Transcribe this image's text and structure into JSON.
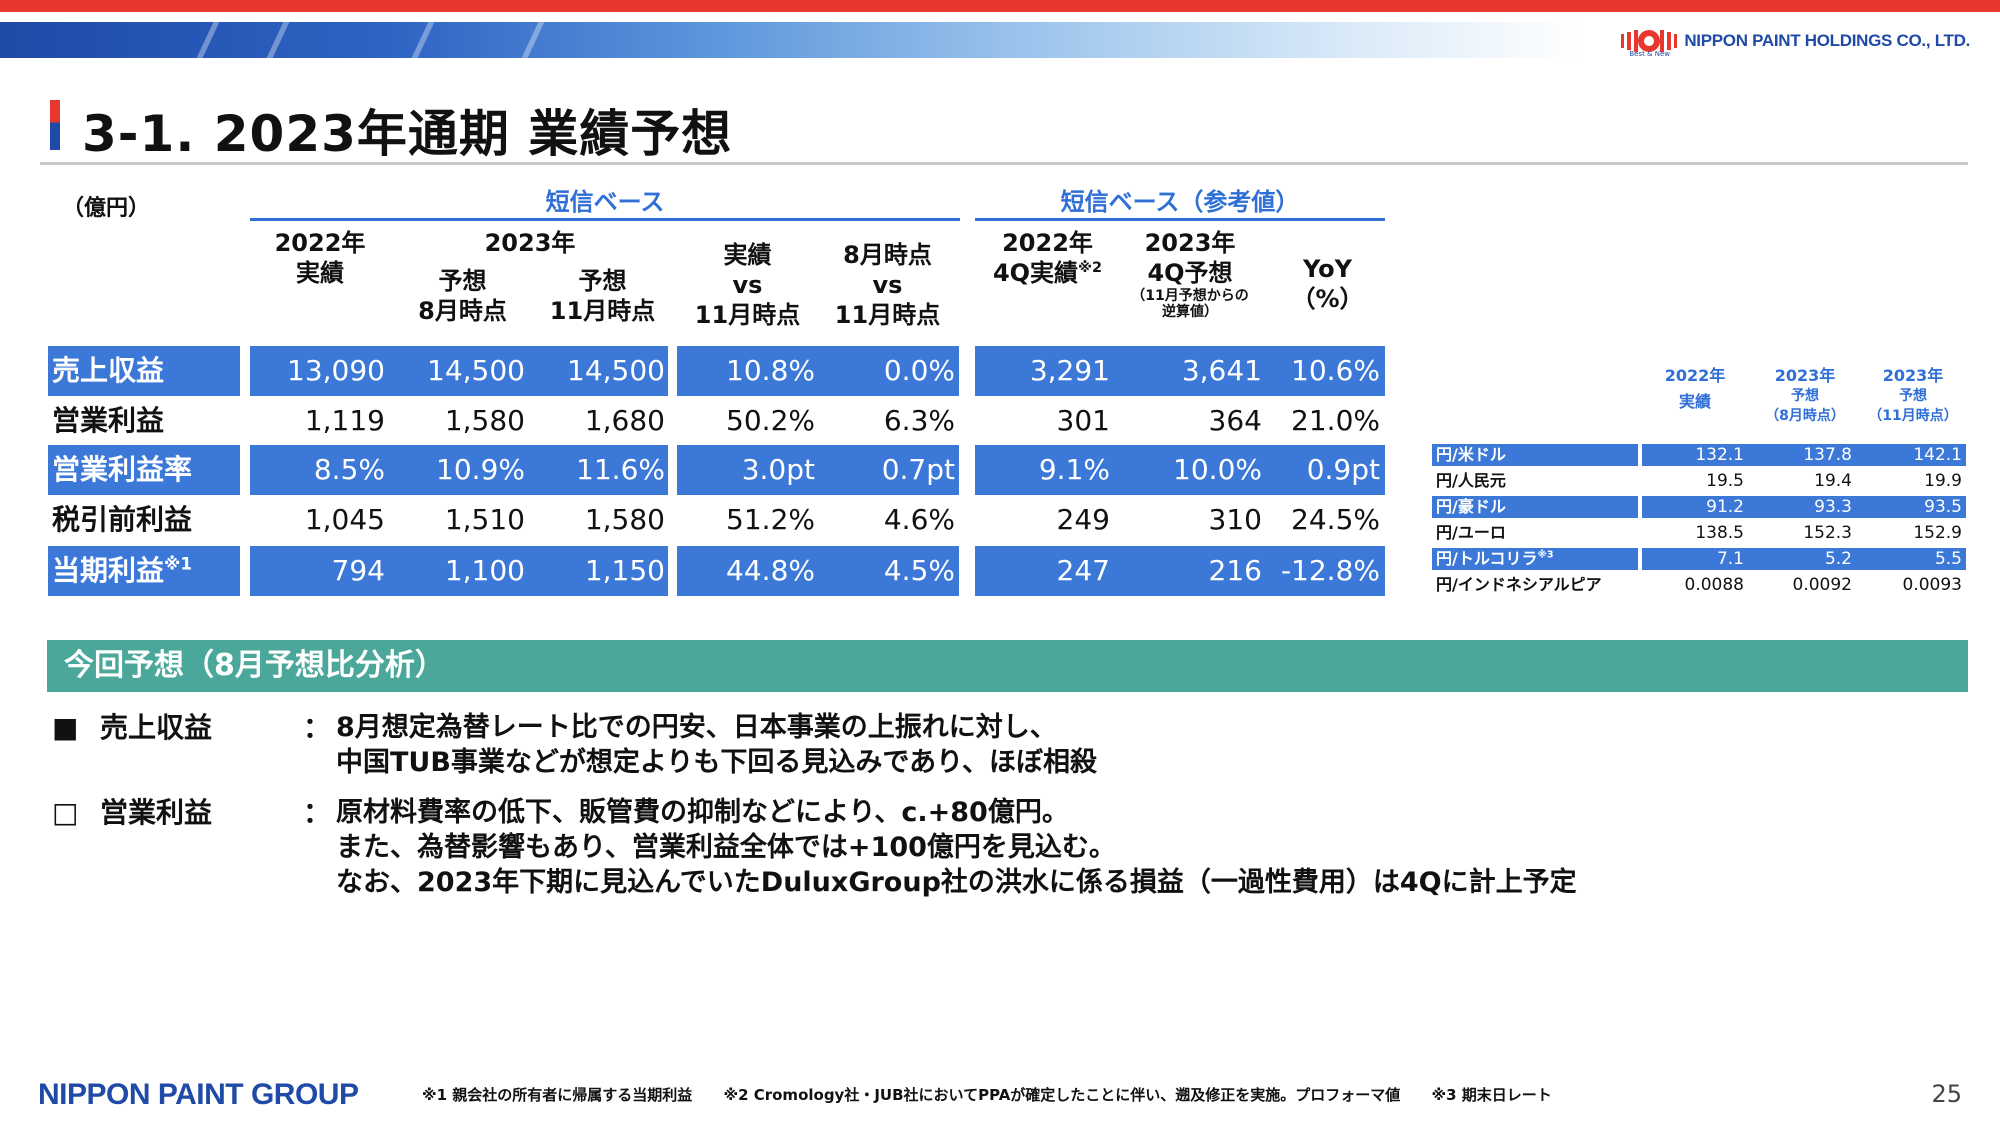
{
  "header": {
    "company": "NIPPON PAINT HOLDINGS CO., LTD.",
    "tagline": "Best & New",
    "title": "3-1. 2023年通期 業績予想"
  },
  "table": {
    "unit": "（億円）",
    "group1": "短信ベース",
    "group2": "短信ベース（参考値）",
    "col_headers": [
      {
        "l1": "2022年",
        "l2": "実績",
        "l3": ""
      },
      {
        "l1": "予想",
        "l2": "8月時点"
      },
      {
        "l1": "予想",
        "l2": "11月時点"
      },
      {
        "l1": "実績",
        "l2": "vs",
        "l3": "11月時点"
      },
      {
        "l1": "8月時点",
        "l2": "vs",
        "l3": "11月時点"
      },
      {
        "l1": "2022年",
        "l2": "4Q実績",
        "sup": "※2"
      },
      {
        "l1": "2023年",
        "l2": "4Q予想",
        "note1": "（11月予想からの",
        "note2": "逆算値）"
      },
      {
        "l1": "YoY",
        "l2": "（%）"
      }
    ],
    "year2023": "2023年",
    "rows": [
      {
        "label": "売上収益",
        "sup": "",
        "values": [
          "13,090",
          "14,500",
          "14,500",
          "10.8%",
          "0.0%",
          "3,291",
          "3,641",
          "10.6%"
        ]
      },
      {
        "label": "営業利益",
        "sup": "",
        "values": [
          "1,119",
          "1,580",
          "1,680",
          "50.2%",
          "6.3%",
          "301",
          "364",
          "21.0%"
        ]
      },
      {
        "label": "営業利益率",
        "sup": "",
        "values": [
          "8.5%",
          "10.9%",
          "11.6%",
          "3.0pt",
          "0.7pt",
          "9.1%",
          "10.0%",
          "0.9pt"
        ]
      },
      {
        "label": "税引前利益",
        "sup": "",
        "values": [
          "1,045",
          "1,510",
          "1,580",
          "51.2%",
          "4.6%",
          "249",
          "310",
          "24.5%"
        ]
      },
      {
        "label": "当期利益",
        "sup": "※1",
        "values": [
          "794",
          "1,100",
          "1,150",
          "44.8%",
          "4.5%",
          "247",
          "216",
          "-12.8%"
        ]
      }
    ]
  },
  "fx": {
    "headers": [
      {
        "l1": "2022年",
        "l2": "実績",
        "l3": ""
      },
      {
        "l1": "2023年",
        "l2": "予想",
        "l3": "（8月時点）"
      },
      {
        "l1": "2023年",
        "l2": "予想",
        "l3": "（11月時点）"
      }
    ],
    "rows": [
      {
        "label": "円/米ドル",
        "sup": "",
        "values": [
          "132.1",
          "137.8",
          "142.1"
        ]
      },
      {
        "label": "円/人民元",
        "sup": "",
        "values": [
          "19.5",
          "19.4",
          "19.9"
        ]
      },
      {
        "label": "円/豪ドル",
        "sup": "",
        "values": [
          "91.2",
          "93.3",
          "93.5"
        ]
      },
      {
        "label": "円/ユーロ",
        "sup": "",
        "values": [
          "138.5",
          "152.3",
          "152.9"
        ]
      },
      {
        "label": "円/トルコリラ",
        "sup": "※3",
        "values": [
          "7.1",
          "5.2",
          "5.5"
        ]
      },
      {
        "label": "円/インドネシアルピア",
        "sup": "",
        "values": [
          "0.0088",
          "0.0092",
          "0.0093"
        ]
      }
    ]
  },
  "analysis": {
    "title": "今回予想（8月予想比分析）",
    "items": [
      {
        "marker": "■",
        "head": "売上収益",
        "colon": "：",
        "lines": [
          "8月想定為替レート比での円安、日本事業の上振れに対し、",
          "中国TUB事業などが想定よりも下回る見込みであり、ほぼ相殺"
        ]
      },
      {
        "marker": "□",
        "head": "営業利益",
        "colon": "：",
        "lines": [
          "原材料費率の低下、販管費の抑制などにより、c.+80億円。",
          "また、為替影響もあり、営業利益全体では+100億円を見込む。",
          "なお、2023年下期に見込んでいたDuluxGroup社の洪水に係る損益（一過性費用）は4Qに計上予定"
        ]
      }
    ]
  },
  "footer": {
    "group_logo": "NIPPON PAINT GROUP",
    "note1": "※1 親会社の所有者に帰属する当期利益",
    "note2": "※2 Cromology社・JUB社においてPPAが確定したことに伴い、遡及修正を実施。プロフォーマ値",
    "note3": "※3 期末日レート",
    "page": "25"
  },
  "colors": {
    "accent_blue": "#3b78d8",
    "header_blue": "#2f6fd6",
    "teal": "#4aa79a",
    "red": "#e8372d"
  }
}
